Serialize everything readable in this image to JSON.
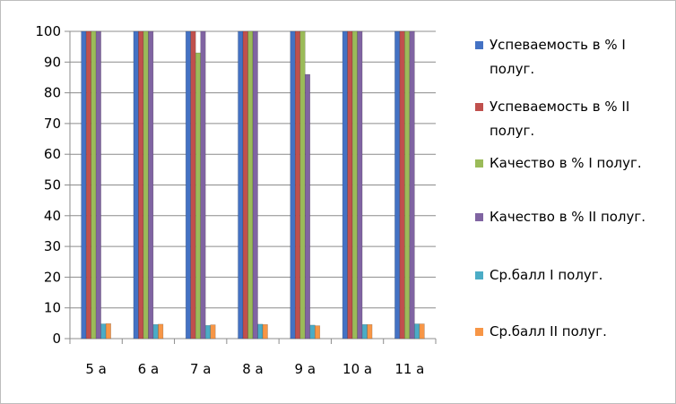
{
  "chart_data": {
    "type": "bar",
    "categories": [
      "5 а",
      "6 а",
      "7 а",
      "8 а",
      "9 а",
      "10 а",
      "11 а"
    ],
    "ylim": [
      0,
      100
    ],
    "yticks": [
      0,
      10,
      20,
      30,
      40,
      50,
      60,
      70,
      80,
      90,
      100
    ],
    "grid": true,
    "legend_position": "right",
    "series": [
      {
        "name": "Успеваемость в % I полуг.",
        "color": "#4472C4",
        "values": [
          100,
          100,
          100,
          100,
          100,
          100,
          100
        ]
      },
      {
        "name": "Успеваемость в % II полуг.",
        "color": "#C0504D",
        "values": [
          100,
          100,
          100,
          100,
          100,
          100,
          100
        ]
      },
      {
        "name": "Качество в % I полуг.",
        "color": "#9BBB59",
        "values": [
          100,
          100,
          93,
          100,
          100,
          100,
          100
        ]
      },
      {
        "name": "Качество в % II полуг.",
        "color": "#8064A2",
        "values": [
          100,
          100,
          100,
          100,
          86,
          100,
          100
        ]
      },
      {
        "name": "Ср.балл I полуг.",
        "color": "#4BACC6",
        "values": [
          4.8,
          4.6,
          4.3,
          4.7,
          4.4,
          4.6,
          4.8
        ]
      },
      {
        "name": "Ср.балл II полуг.",
        "color": "#F79646",
        "values": [
          4.9,
          4.7,
          4.5,
          4.6,
          4.2,
          4.6,
          4.8
        ]
      }
    ],
    "legend_lines": [
      [
        "Успеваемость в % I",
        "полуг."
      ],
      [
        "Успеваемость в % II",
        "полуг."
      ],
      [
        "Качество в % I полуг."
      ],
      [
        "Качество в % II полуг."
      ],
      [
        "Ср.балл I полуг."
      ],
      [
        "Ср.балл II полуг."
      ]
    ]
  }
}
